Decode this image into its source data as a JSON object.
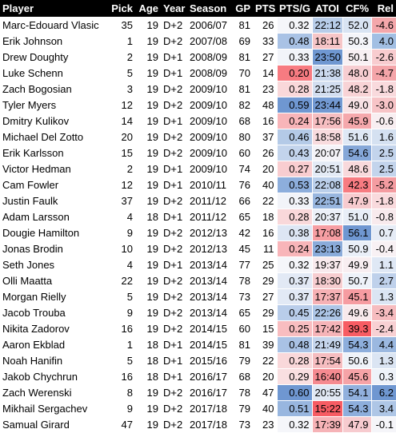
{
  "headers": [
    "Player",
    "Pick",
    "Age",
    "Year",
    "Season",
    "GP",
    "PTS",
    "PTS/G",
    "ATOI",
    "CF%",
    "Rel"
  ],
  "rows": [
    {
      "player": "Marc-Edouard Vlasic",
      "pick": "35",
      "age": "19",
      "year": "D+2",
      "season": "2006/07",
      "gp": "81",
      "pts": "26",
      "ptsg": "0.32",
      "atoi": "22:12",
      "cf": "52.0",
      "rel": "-4.6",
      "c_ptsg": "#f5f6fa",
      "c_atoi": "#b8cde9",
      "c_cf": "#d9e4f3",
      "c_rel": "#f4a7ab"
    },
    {
      "player": "Erik Johnson",
      "pick": "1",
      "age": "19",
      "year": "D+2",
      "season": "2007/08",
      "gp": "69",
      "pts": "33",
      "ptsg": "0.48",
      "atoi": "18:11",
      "cf": "50.3",
      "rel": "4.0",
      "c_ptsg": "#a9c2e5",
      "c_atoi": "#f6c6c8",
      "c_cf": "#f4f5fa",
      "c_rel": "#a2bfe3"
    },
    {
      "player": "Drew Doughty",
      "pick": "2",
      "age": "19",
      "year": "D+1",
      "season": "2008/09",
      "gp": "81",
      "pts": "27",
      "ptsg": "0.33",
      "atoi": "23:50",
      "cf": "50.1",
      "rel": "-2.6",
      "c_ptsg": "#f2f4f9",
      "c_atoi": "#6f97d1",
      "c_cf": "#f8f0f3",
      "c_rel": "#f8cccf"
    },
    {
      "player": "Luke Schenn",
      "pick": "5",
      "age": "19",
      "year": "D+1",
      "season": "2008/09",
      "gp": "70",
      "pts": "14",
      "ptsg": "0.20",
      "atoi": "21:38",
      "cf": "48.0",
      "rel": "-4.7",
      "c_ptsg": "#f77b81",
      "c_atoi": "#cbd9ee",
      "c_cf": "#f7cdd1",
      "c_rel": "#f4a5a9"
    },
    {
      "player": "Zach Bogosian",
      "pick": "3",
      "age": "19",
      "year": "D+2",
      "season": "2009/10",
      "gp": "81",
      "pts": "23",
      "ptsg": "0.28",
      "atoi": "21:25",
      "cf": "48.2",
      "rel": "-1.8",
      "c_ptsg": "#f9d8da",
      "c_atoi": "#d3def0",
      "c_cf": "#f8d3d6",
      "c_rel": "#f9dadd"
    },
    {
      "player": "Tyler Myers",
      "pick": "12",
      "age": "19",
      "year": "D+2",
      "season": "2009/10",
      "gp": "82",
      "pts": "48",
      "ptsg": "0.59",
      "atoi": "23:44",
      "cf": "49.0",
      "rel": "-3.0",
      "c_ptsg": "#6f97d1",
      "c_atoi": "#7299d2",
      "c_cf": "#f8e2e5",
      "c_rel": "#f7c4c7"
    },
    {
      "player": "Dmitry Kulikov",
      "pick": "14",
      "age": "19",
      "year": "D+1",
      "season": "2009/10",
      "gp": "68",
      "pts": "16",
      "ptsg": "0.24",
      "atoi": "17:56",
      "cf": "45.9",
      "rel": "-0.6",
      "c_ptsg": "#f8b5b9",
      "c_atoi": "#f6bec1",
      "c_cf": "#f5a8ac",
      "c_rel": "#f8eef1"
    },
    {
      "player": "Michael Del Zotto",
      "pick": "20",
      "age": "19",
      "year": "D+2",
      "season": "2009/10",
      "gp": "80",
      "pts": "37",
      "ptsg": "0.46",
      "atoi": "18:58",
      "cf": "51.6",
      "rel": "1.6",
      "c_ptsg": "#b4cae7",
      "c_atoi": "#f8dbde",
      "c_cf": "#dfe8f5",
      "c_rel": "#d5e1f1"
    },
    {
      "player": "Erik Karlsson",
      "pick": "15",
      "age": "19",
      "year": "D+2",
      "season": "2009/10",
      "gp": "60",
      "pts": "26",
      "ptsg": "0.43",
      "atoi": "20:07",
      "cf": "54.6",
      "rel": "2.5",
      "c_ptsg": "#c3d4ec",
      "c_atoi": "#f4f3f8",
      "c_cf": "#85a7d8",
      "c_rel": "#c3d4ec"
    },
    {
      "player": "Victor Hedman",
      "pick": "2",
      "age": "19",
      "year": "D+1",
      "season": "2009/10",
      "gp": "74",
      "pts": "20",
      "ptsg": "0.27",
      "atoi": "20:51",
      "cf": "48.6",
      "rel": "2.5",
      "c_ptsg": "#f9cdd0",
      "c_atoi": "#e4ebf6",
      "c_cf": "#f8d9dc",
      "c_rel": "#c3d4ec"
    },
    {
      "player": "Cam Fowler",
      "pick": "12",
      "age": "19",
      "year": "D+1",
      "season": "2010/11",
      "gp": "76",
      "pts": "40",
      "ptsg": "0.53",
      "atoi": "22:08",
      "cf": "42.3",
      "rel": "-5.2",
      "c_ptsg": "#8daedc",
      "c_atoi": "#bbcfea",
      "c_cf": "#f77b81",
      "c_rel": "#f49ca1"
    },
    {
      "player": "Justin Faulk",
      "pick": "37",
      "age": "19",
      "year": "D+2",
      "season": "2011/12",
      "gp": "66",
      "pts": "22",
      "ptsg": "0.33",
      "atoi": "22:51",
      "cf": "47.9",
      "rel": "-1.8",
      "c_ptsg": "#f2f4f9",
      "c_atoi": "#98b6df",
      "c_cf": "#f7cbcf",
      "c_rel": "#f9dadd"
    },
    {
      "player": "Adam Larsson",
      "pick": "4",
      "age": "18",
      "year": "D+1",
      "season": "2011/12",
      "gp": "65",
      "pts": "18",
      "ptsg": "0.28",
      "atoi": "20:37",
      "cf": "51.0",
      "rel": "-0.8",
      "c_ptsg": "#f9d8da",
      "c_atoi": "#ecf0f8",
      "c_cf": "#e8eef7",
      "c_rel": "#f8eaed"
    },
    {
      "player": "Dougie Hamilton",
      "pick": "9",
      "age": "19",
      "year": "D+2",
      "season": "2012/13",
      "gp": "42",
      "pts": "16",
      "ptsg": "0.38",
      "atoi": "17:08",
      "cf": "56.1",
      "rel": "0.7",
      "c_ptsg": "#dde6f4",
      "c_atoi": "#f69ea3",
      "c_cf": "#6f97d1",
      "c_rel": "#e6ecf6"
    },
    {
      "player": "Jonas Brodin",
      "pick": "10",
      "age": "19",
      "year": "D+2",
      "season": "2012/13",
      "gp": "45",
      "pts": "11",
      "ptsg": "0.24",
      "atoi": "23:13",
      "cf": "50.9",
      "rel": "-0.4",
      "c_ptsg": "#f8b5b9",
      "c_atoi": "#8aabda",
      "c_cf": "#eaeff8",
      "c_rel": "#f8f1f4"
    },
    {
      "player": "Seth Jones",
      "pick": "4",
      "age": "19",
      "year": "D+1",
      "season": "2013/14",
      "gp": "77",
      "pts": "25",
      "ptsg": "0.32",
      "atoi": "19:37",
      "cf": "49.9",
      "rel": "1.1",
      "c_ptsg": "#f5f6fa",
      "c_atoi": "#f8eaed",
      "c_cf": "#f8eef1",
      "c_rel": "#dfe8f5"
    },
    {
      "player": "Olli Maatta",
      "pick": "22",
      "age": "19",
      "year": "D+2",
      "season": "2013/14",
      "gp": "78",
      "pts": "29",
      "ptsg": "0.37",
      "atoi": "18:30",
      "cf": "50.7",
      "rel": "2.7",
      "c_ptsg": "#e2e9f5",
      "c_atoi": "#f7cdd0",
      "c_cf": "#eef2f9",
      "c_rel": "#bfd1eb"
    },
    {
      "player": "Morgan Rielly",
      "pick": "5",
      "age": "19",
      "year": "D+2",
      "season": "2013/14",
      "gp": "73",
      "pts": "27",
      "ptsg": "0.37",
      "atoi": "17:37",
      "cf": "45.1",
      "rel": "1.3",
      "c_ptsg": "#e2e9f5",
      "c_atoi": "#f6b1b5",
      "c_cf": "#f69ca1",
      "c_rel": "#dbe5f3"
    },
    {
      "player": "Jacob Trouba",
      "pick": "9",
      "age": "19",
      "year": "D+2",
      "season": "2013/14",
      "gp": "65",
      "pts": "29",
      "ptsg": "0.45",
      "atoi": "22:26",
      "cf": "49.6",
      "rel": "-3.4",
      "c_ptsg": "#b9cdea",
      "c_atoi": "#adc5e6",
      "c_cf": "#f8e9ec",
      "c_rel": "#f6bcbf"
    },
    {
      "player": "Nikita Zadorov",
      "pick": "16",
      "age": "19",
      "year": "D+2",
      "season": "2014/15",
      "gp": "60",
      "pts": "15",
      "ptsg": "0.25",
      "atoi": "17:42",
      "cf": "39.3",
      "rel": "-2.4",
      "c_ptsg": "#f8bdc0",
      "c_atoi": "#f6b4b8",
      "c_cf": "#f75c63",
      "c_rel": "#f8d0d3"
    },
    {
      "player": "Aaron Ekblad",
      "pick": "1",
      "age": "18",
      "year": "D+1",
      "season": "2014/15",
      "gp": "81",
      "pts": "39",
      "ptsg": "0.48",
      "atoi": "21:49",
      "cf": "54.3",
      "rel": "4.4",
      "c_ptsg": "#a9c2e5",
      "c_atoi": "#c5d5ec",
      "c_cf": "#8daedc",
      "c_rel": "#9bb8e0"
    },
    {
      "player": "Noah Hanifin",
      "pick": "5",
      "age": "18",
      "year": "D+1",
      "season": "2015/16",
      "gp": "79",
      "pts": "22",
      "ptsg": "0.28",
      "atoi": "17:54",
      "cf": "50.6",
      "rel": "1.3",
      "c_ptsg": "#f9d8da",
      "c_atoi": "#f6bdc0",
      "c_cf": "#eff3f9",
      "c_rel": "#dbe5f3"
    },
    {
      "player": "Jakob Chychrun",
      "pick": "16",
      "age": "18",
      "year": "D+1",
      "season": "2016/17",
      "gp": "68",
      "pts": "20",
      "ptsg": "0.29",
      "atoi": "16:40",
      "cf": "45.6",
      "rel": "0.3",
      "c_ptsg": "#f9dfe1",
      "c_atoi": "#f58a90",
      "c_cf": "#f6a3a7",
      "c_rel": "#eef2f9"
    },
    {
      "player": "Zach Werenski",
      "pick": "8",
      "age": "19",
      "year": "D+2",
      "season": "2016/17",
      "gp": "78",
      "pts": "47",
      "ptsg": "0.60",
      "atoi": "20:55",
      "cf": "54.1",
      "rel": "6.2",
      "c_ptsg": "#6f97d1",
      "c_atoi": "#e2e9f5",
      "c_cf": "#91b0dd",
      "c_rel": "#6f97d1"
    },
    {
      "player": "Mikhail Sergachev",
      "pick": "9",
      "age": "19",
      "year": "D+2",
      "season": "2017/18",
      "gp": "79",
      "pts": "40",
      "ptsg": "0.51",
      "atoi": "15:22",
      "cf": "54.3",
      "rel": "3.4",
      "c_ptsg": "#98b6df",
      "c_atoi": "#f75c63",
      "c_cf": "#8daedc",
      "c_rel": "#aec6e6"
    },
    {
      "player": "Samual Girard",
      "pick": "47",
      "age": "19",
      "year": "D+2",
      "season": "2017/18",
      "gp": "73",
      "pts": "23",
      "ptsg": "0.32",
      "atoi": "17:39",
      "cf": "47.9",
      "rel": "-0.1",
      "c_ptsg": "#f5f6fa",
      "c_atoi": "#f6b3b7",
      "c_cf": "#f7cbcf",
      "c_rel": "#f5f5f9"
    }
  ]
}
